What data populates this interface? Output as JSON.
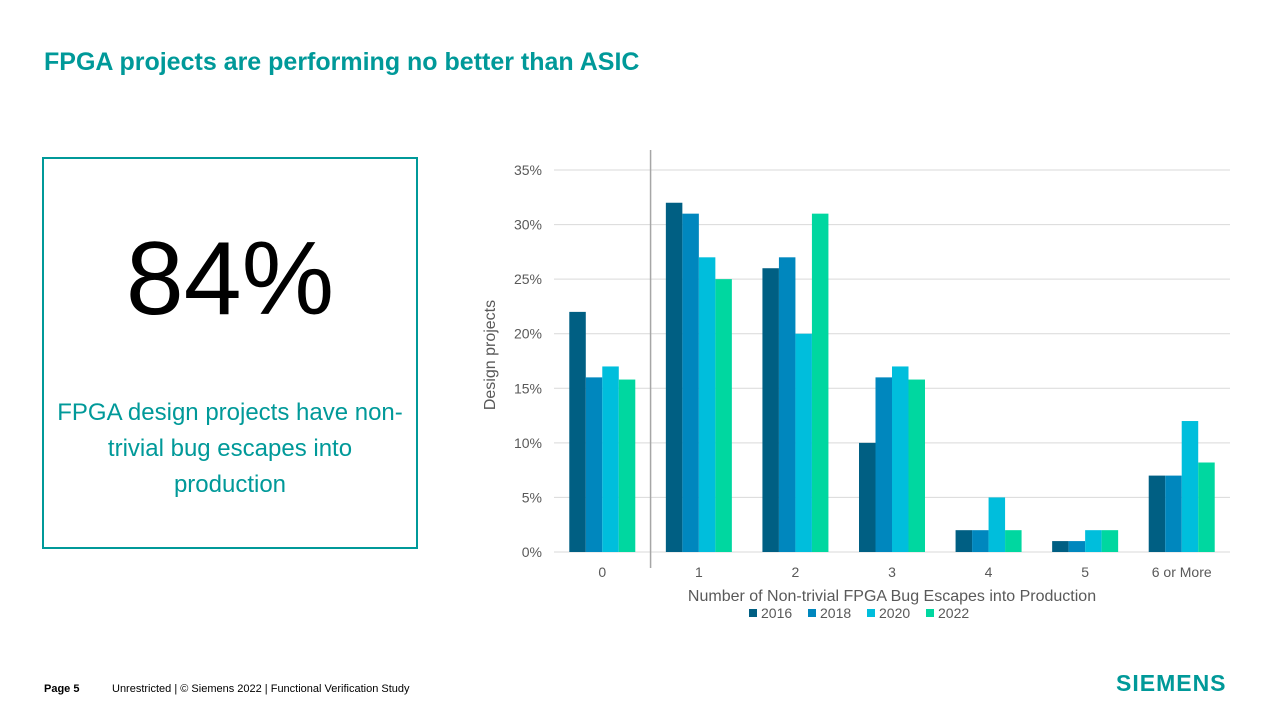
{
  "slide": {
    "title": "FPGA projects are performing no better than ASIC"
  },
  "stat": {
    "value": "84%",
    "caption": "FPGA design projects have non-trivial bug escapes into production"
  },
  "footer": {
    "page": "Page 5",
    "text": "Unrestricted | © Siemens 2022 |  Functional Verification Study"
  },
  "brand": {
    "name": "SIEMENS",
    "color": "#009999"
  },
  "chart_data": {
    "type": "bar",
    "title": "",
    "xlabel": "Number of Non-trivial FPGA Bug Escapes into Production",
    "ylabel": "Design projects",
    "ylim": [
      0,
      35
    ],
    "yticks": [
      0,
      5,
      10,
      15,
      20,
      25,
      30,
      35
    ],
    "ytick_labels": [
      "0%",
      "5%",
      "10%",
      "15%",
      "20%",
      "25%",
      "30%",
      "35%"
    ],
    "categories": [
      "0",
      "1",
      "2",
      "3",
      "4",
      "5",
      "6 or More"
    ],
    "grid": true,
    "legend_position": "bottom",
    "series": [
      {
        "name": "2016",
        "color": "#005F83",
        "values": [
          22,
          32,
          26,
          10,
          2,
          1,
          7
        ]
      },
      {
        "name": "2018",
        "color": "#0087BE",
        "values": [
          16,
          31,
          27,
          16,
          2,
          1,
          7
        ]
      },
      {
        "name": "2020",
        "color": "#00BEDC",
        "values": [
          17,
          27,
          20,
          17,
          5,
          2,
          12
        ]
      },
      {
        "name": "2022",
        "color": "#00D7A0",
        "values": [
          15.8,
          25,
          31,
          15.8,
          2,
          2,
          8.2
        ]
      }
    ]
  }
}
